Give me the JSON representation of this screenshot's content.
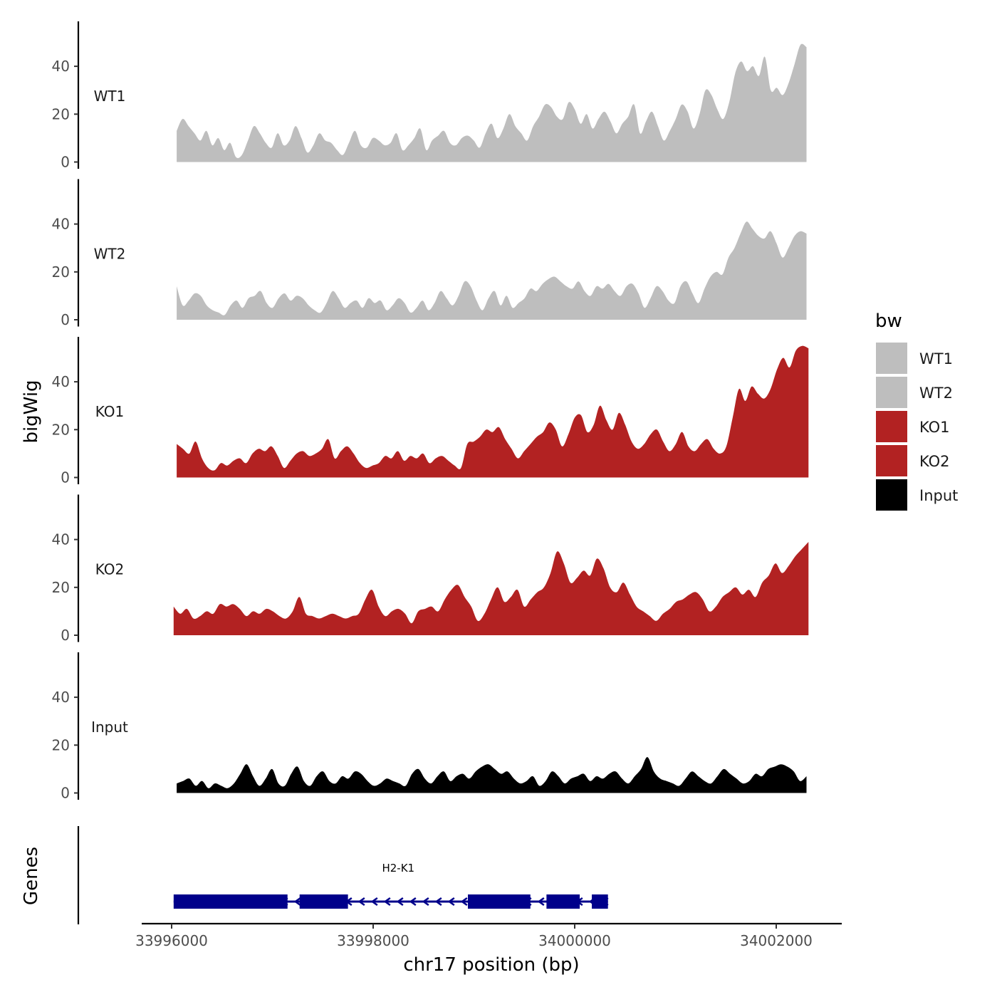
{
  "chart_data": {
    "type": "area",
    "xlabel": "chr17 position (bp)",
    "ylabel": "bigWig",
    "genes_label": "Genes",
    "x_ticks": [
      "33996000",
      "33998000",
      "34000000",
      "34002000"
    ],
    "x_tick_values": [
      33996000,
      33998000,
      34000000,
      34002000
    ],
    "xlim": [
      33995700,
      34002640
    ],
    "y_ticks": [
      "0",
      "20",
      "40"
    ],
    "y_tick_values": [
      0,
      20,
      40
    ],
    "ylim": [
      -2,
      60
    ],
    "x_start": 33996050,
    "x_end": 34002300,
    "legend": {
      "title": "bw",
      "entries": [
        "WT1",
        "WT2",
        "KO1",
        "KO2",
        "Input"
      ],
      "placement": "right"
    },
    "series": [
      {
        "name": "WT1",
        "color": "#bebebe",
        "x_start": 33996050,
        "x_end": 34002300,
        "values": [
          13,
          18,
          15,
          12,
          9,
          13,
          7,
          10,
          5,
          8,
          2,
          3,
          9,
          15,
          12,
          8,
          6,
          12,
          7,
          9,
          15,
          10,
          4,
          7,
          12,
          9,
          8,
          5,
          3,
          8,
          13,
          7,
          6,
          10,
          9,
          7,
          8,
          12,
          5,
          7,
          10,
          14,
          5,
          9,
          11,
          13,
          8,
          7,
          10,
          11,
          9,
          6,
          12,
          16,
          10,
          14,
          20,
          15,
          12,
          9,
          15,
          19,
          24,
          23,
          19,
          18,
          25,
          22,
          16,
          20,
          14,
          18,
          21,
          17,
          12,
          16,
          19,
          24,
          12,
          17,
          21,
          15,
          9,
          13,
          18,
          24,
          21,
          14,
          20,
          30,
          28,
          22,
          18,
          25,
          37,
          42,
          38,
          40,
          36,
          44,
          30,
          31,
          28,
          33,
          41,
          49,
          48
        ]
      },
      {
        "name": "WT2",
        "color": "#bebebe",
        "x_start": 33996050,
        "x_end": 34002300,
        "values": [
          14,
          6,
          8,
          11,
          10,
          6,
          4,
          3,
          2,
          6,
          8,
          5,
          9,
          10,
          12,
          7,
          5,
          9,
          11,
          8,
          10,
          9,
          6,
          4,
          3,
          7,
          12,
          9,
          5,
          7,
          8,
          5,
          9,
          7,
          8,
          4,
          6,
          9,
          7,
          3,
          5,
          8,
          4,
          7,
          12,
          9,
          6,
          10,
          16,
          14,
          8,
          4,
          9,
          12,
          6,
          10,
          5,
          7,
          9,
          13,
          12,
          15,
          17,
          18,
          16,
          14,
          13,
          16,
          12,
          10,
          14,
          13,
          15,
          12,
          10,
          14,
          15,
          11,
          5,
          9,
          14,
          12,
          8,
          7,
          14,
          16,
          11,
          7,
          13,
          18,
          20,
          19,
          26,
          30,
          36,
          41,
          38,
          35,
          34,
          37,
          32,
          26,
          30,
          35,
          37,
          36
        ]
      },
      {
        "name": "KO1",
        "color": "#b22222",
        "x_start": 33996050,
        "x_end": 34002320,
        "values": [
          14,
          12,
          10,
          15,
          8,
          4,
          3,
          6,
          5,
          7,
          8,
          6,
          10,
          12,
          11,
          13,
          9,
          4,
          7,
          10,
          11,
          9,
          10,
          12,
          16,
          8,
          11,
          13,
          10,
          6,
          4,
          5,
          6,
          9,
          8,
          11,
          7,
          9,
          8,
          10,
          6,
          8,
          9,
          7,
          5,
          4,
          14,
          15,
          17,
          20,
          19,
          21,
          16,
          12,
          8,
          11,
          14,
          17,
          19,
          23,
          20,
          13,
          18,
          25,
          26,
          19,
          22,
          30,
          24,
          20,
          27,
          22,
          15,
          12,
          14,
          18,
          20,
          15,
          11,
          14,
          19,
          13,
          11,
          14,
          16,
          12,
          10,
          13,
          25,
          37,
          32,
          38,
          35,
          33,
          37,
          45,
          50,
          46,
          53,
          55,
          54
        ]
      },
      {
        "name": "KO2",
        "color": "#b22222",
        "x_start": 33996020,
        "x_end": 34002320,
        "values": [
          12,
          9,
          11,
          7,
          8,
          10,
          9,
          13,
          12,
          13,
          11,
          8,
          10,
          9,
          11,
          10,
          8,
          7,
          10,
          16,
          9,
          8,
          7,
          8,
          9,
          8,
          7,
          8,
          9,
          15,
          19,
          12,
          8,
          10,
          11,
          9,
          5,
          10,
          11,
          12,
          10,
          15,
          19,
          21,
          16,
          12,
          6,
          9,
          15,
          20,
          14,
          16,
          19,
          12,
          15,
          18,
          20,
          26,
          35,
          30,
          22,
          24,
          27,
          25,
          32,
          28,
          20,
          18,
          22,
          17,
          12,
          10,
          8,
          6,
          9,
          11,
          14,
          15,
          17,
          18,
          15,
          10,
          12,
          16,
          18,
          20,
          17,
          19,
          16,
          22,
          25,
          30,
          26,
          29,
          33,
          36,
          39
        ]
      },
      {
        "name": "Input",
        "color": "#000000",
        "x_start": 33996050,
        "x_end": 34002300,
        "values": [
          4,
          5,
          6,
          3,
          5,
          2,
          4,
          3,
          2,
          4,
          8,
          12,
          7,
          3,
          6,
          10,
          4,
          3,
          8,
          11,
          5,
          3,
          7,
          9,
          5,
          4,
          7,
          6,
          9,
          8,
          5,
          3,
          4,
          6,
          5,
          4,
          3,
          8,
          10,
          6,
          4,
          7,
          9,
          5,
          7,
          8,
          6,
          9,
          11,
          12,
          10,
          8,
          9,
          6,
          4,
          5,
          7,
          3,
          5,
          9,
          7,
          4,
          6,
          7,
          8,
          5,
          7,
          6,
          8,
          9,
          6,
          4,
          7,
          10,
          15,
          9,
          6,
          5,
          4,
          3,
          6,
          9,
          7,
          5,
          4,
          7,
          10,
          8,
          6,
          4,
          5,
          8,
          7,
          10,
          11,
          12,
          11,
          9,
          5,
          7
        ]
      }
    ],
    "genes": [
      {
        "name": "H2-K1",
        "strand": "-",
        "start": 33996020,
        "end": 34000330,
        "exons": [
          [
            33996020,
            33997150
          ],
          [
            33997270,
            33997750
          ],
          [
            33998940,
            33999560
          ],
          [
            33999720,
            34000050
          ],
          [
            34000170,
            34000330
          ]
        ]
      }
    ]
  }
}
